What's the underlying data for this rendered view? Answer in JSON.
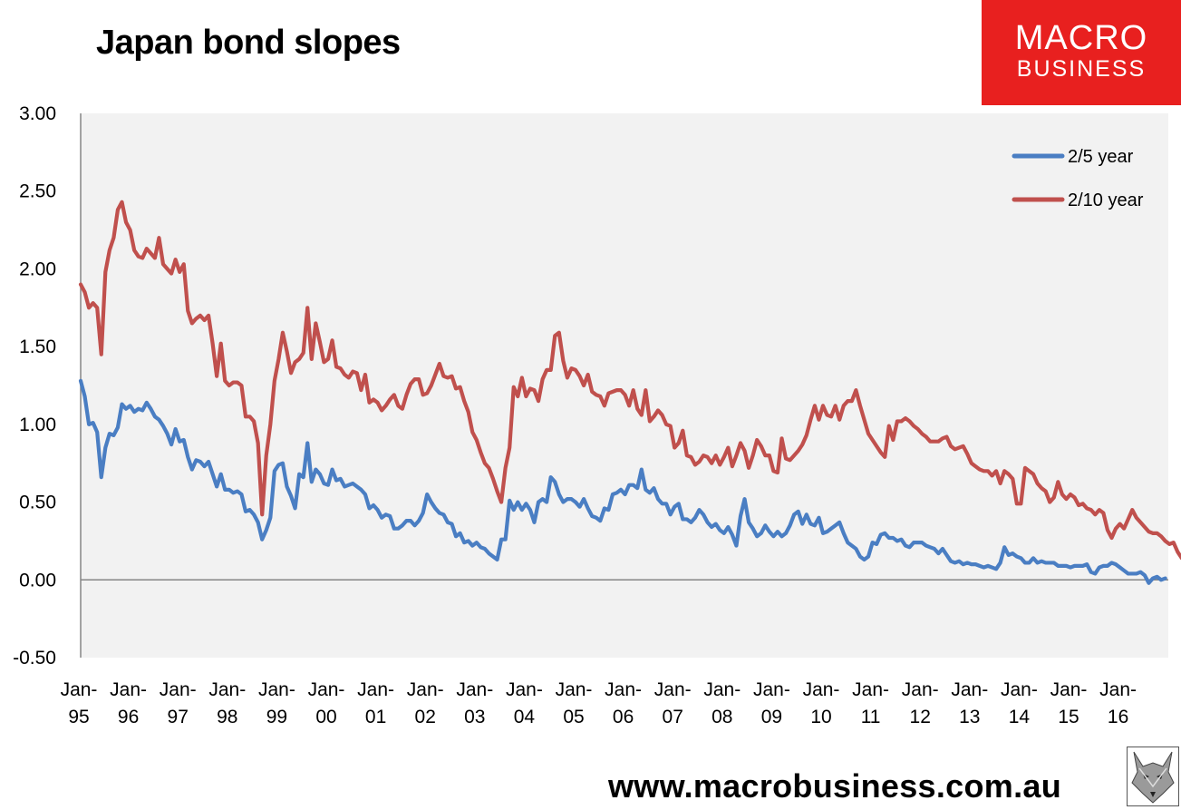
{
  "title": "Japan bond slopes",
  "logo": {
    "line1": "MACRO",
    "line2": "BUSINESS"
  },
  "footer": "www.macrobusiness.com.au",
  "colors": {
    "series_2_5": "#4a7ec3",
    "series_2_10": "#c0504d",
    "plot_bg": "#f2f2f2",
    "brand": "#e8201f"
  },
  "chart_data": {
    "type": "line",
    "title": "Japan bond slopes",
    "xlabel": "",
    "ylabel": "",
    "ylim": [
      -0.5,
      3.0
    ],
    "yticks": [
      "3.00",
      "2.50",
      "2.00",
      "1.50",
      "1.00",
      "0.50",
      "0.00",
      "-0.50"
    ],
    "xticks": [
      [
        "Jan-",
        "95"
      ],
      [
        "Jan-",
        "96"
      ],
      [
        "Jan-",
        "97"
      ],
      [
        "Jan-",
        "98"
      ],
      [
        "Jan-",
        "99"
      ],
      [
        "Jan-",
        "00"
      ],
      [
        "Jan-",
        "01"
      ],
      [
        "Jan-",
        "02"
      ],
      [
        "Jan-",
        "03"
      ],
      [
        "Jan-",
        "04"
      ],
      [
        "Jan-",
        "05"
      ],
      [
        "Jan-",
        "06"
      ],
      [
        "Jan-",
        "07"
      ],
      [
        "Jan-",
        "08"
      ],
      [
        "Jan-",
        "09"
      ],
      [
        "Jan-",
        "10"
      ],
      [
        "Jan-",
        "11"
      ],
      [
        "Jan-",
        "12"
      ],
      [
        "Jan-",
        "13"
      ],
      [
        "Jan-",
        "14"
      ],
      [
        "Jan-",
        "15"
      ],
      [
        "Jan-",
        "16"
      ]
    ],
    "x_start": "Jan-95",
    "x_frequency": "monthly",
    "grid": false,
    "legend": "top-right",
    "series": [
      {
        "name": "2/5 year",
        "values": [
          1.28,
          1.18,
          1.0,
          1.01,
          0.95,
          0.66,
          0.85,
          0.94,
          0.93,
          0.98,
          1.13,
          1.1,
          1.12,
          1.08,
          1.1,
          1.09,
          1.14,
          1.1,
          1.05,
          1.03,
          0.99,
          0.94,
          0.87,
          0.97,
          0.89,
          0.9,
          0.79,
          0.71,
          0.77,
          0.76,
          0.73,
          0.76,
          0.68,
          0.6,
          0.68,
          0.58,
          0.58,
          0.56,
          0.57,
          0.55,
          0.44,
          0.45,
          0.42,
          0.37,
          0.26,
          0.32,
          0.4,
          0.7,
          0.74,
          0.75,
          0.6,
          0.54,
          0.46,
          0.68,
          0.66,
          0.88,
          0.63,
          0.71,
          0.68,
          0.62,
          0.61,
          0.71,
          0.64,
          0.65,
          0.6,
          0.61,
          0.62,
          0.6,
          0.58,
          0.55,
          0.46,
          0.48,
          0.45,
          0.4,
          0.42,
          0.41,
          0.33,
          0.33,
          0.35,
          0.38,
          0.38,
          0.35,
          0.38,
          0.43,
          0.55,
          0.5,
          0.46,
          0.43,
          0.42,
          0.37,
          0.36,
          0.28,
          0.3,
          0.24,
          0.25,
          0.22,
          0.24,
          0.21,
          0.2,
          0.17,
          0.15,
          0.13,
          0.26,
          0.26,
          0.51,
          0.45,
          0.5,
          0.45,
          0.49,
          0.45,
          0.37,
          0.5,
          0.52,
          0.5,
          0.66,
          0.63,
          0.55,
          0.5,
          0.52,
          0.52,
          0.5,
          0.47,
          0.52,
          0.46,
          0.41,
          0.4,
          0.38,
          0.46,
          0.45,
          0.55,
          0.56,
          0.58,
          0.55,
          0.61,
          0.61,
          0.59,
          0.71,
          0.58,
          0.56,
          0.59,
          0.52,
          0.49,
          0.49,
          0.42,
          0.47,
          0.49,
          0.39,
          0.39,
          0.37,
          0.4,
          0.45,
          0.42,
          0.37,
          0.34,
          0.36,
          0.32,
          0.3,
          0.34,
          0.29,
          0.22,
          0.41,
          0.52,
          0.37,
          0.33,
          0.28,
          0.3,
          0.35,
          0.31,
          0.28,
          0.31,
          0.28,
          0.3,
          0.35,
          0.42,
          0.44,
          0.36,
          0.42,
          0.36,
          0.35,
          0.4,
          0.3,
          0.31,
          0.33,
          0.35,
          0.37,
          0.3,
          0.24,
          0.22,
          0.2,
          0.15,
          0.13,
          0.15,
          0.24,
          0.23,
          0.29,
          0.3,
          0.27,
          0.27,
          0.25,
          0.26,
          0.22,
          0.21,
          0.24,
          0.24,
          0.24,
          0.22,
          0.21,
          0.2,
          0.17,
          0.2,
          0.16,
          0.12,
          0.11,
          0.12,
          0.1,
          0.11,
          0.1,
          0.1,
          0.09,
          0.08,
          0.09,
          0.08,
          0.07,
          0.11,
          0.21,
          0.16,
          0.17,
          0.15,
          0.14,
          0.11,
          0.11,
          0.14,
          0.11,
          0.12,
          0.11,
          0.11,
          0.11,
          0.09,
          0.09,
          0.09,
          0.08,
          0.09,
          0.09,
          0.09,
          0.1,
          0.05,
          0.04,
          0.08,
          0.09,
          0.09,
          0.11,
          0.1,
          0.08,
          0.06,
          0.04,
          0.04,
          0.04,
          0.05,
          0.03,
          -0.02,
          0.01,
          0.02,
          0.0,
          0.01
        ]
      },
      {
        "name": "2/10 year",
        "values": [
          1.9,
          1.85,
          1.75,
          1.78,
          1.75,
          1.45,
          1.98,
          2.12,
          2.2,
          2.38,
          2.43,
          2.3,
          2.25,
          2.12,
          2.08,
          2.07,
          2.13,
          2.1,
          2.07,
          2.2,
          2.03,
          2.0,
          1.97,
          2.06,
          1.98,
          2.03,
          1.73,
          1.65,
          1.68,
          1.7,
          1.67,
          1.7,
          1.52,
          1.31,
          1.52,
          1.28,
          1.25,
          1.27,
          1.27,
          1.25,
          1.05,
          1.05,
          1.02,
          0.88,
          0.42,
          0.8,
          1.0,
          1.28,
          1.42,
          1.59,
          1.47,
          1.33,
          1.4,
          1.42,
          1.46,
          1.75,
          1.42,
          1.65,
          1.53,
          1.4,
          1.42,
          1.54,
          1.37,
          1.36,
          1.32,
          1.3,
          1.34,
          1.33,
          1.22,
          1.32,
          1.14,
          1.16,
          1.14,
          1.09,
          1.12,
          1.16,
          1.19,
          1.12,
          1.1,
          1.19,
          1.26,
          1.29,
          1.29,
          1.19,
          1.2,
          1.25,
          1.32,
          1.39,
          1.31,
          1.3,
          1.31,
          1.23,
          1.24,
          1.15,
          1.08,
          0.95,
          0.9,
          0.82,
          0.75,
          0.72,
          0.65,
          0.57,
          0.5,
          0.72,
          0.85,
          1.24,
          1.18,
          1.3,
          1.18,
          1.23,
          1.22,
          1.15,
          1.29,
          1.35,
          1.35,
          1.57,
          1.59,
          1.41,
          1.3,
          1.36,
          1.35,
          1.31,
          1.25,
          1.32,
          1.21,
          1.19,
          1.18,
          1.12,
          1.2,
          1.21,
          1.22,
          1.22,
          1.19,
          1.12,
          1.22,
          1.1,
          1.06,
          1.22,
          1.02,
          1.05,
          1.09,
          1.06,
          1.0,
          0.99,
          0.85,
          0.88,
          0.96,
          0.8,
          0.79,
          0.74,
          0.76,
          0.8,
          0.79,
          0.75,
          0.8,
          0.74,
          0.79,
          0.85,
          0.73,
          0.8,
          0.88,
          0.83,
          0.72,
          0.8,
          0.9,
          0.86,
          0.8,
          0.8,
          0.7,
          0.69,
          0.91,
          0.78,
          0.77,
          0.8,
          0.83,
          0.87,
          0.93,
          1.03,
          1.12,
          1.03,
          1.12,
          1.06,
          1.05,
          1.12,
          1.03,
          1.12,
          1.15,
          1.15,
          1.22,
          1.12,
          1.03,
          0.94,
          0.9,
          0.86,
          0.82,
          0.79,
          0.99,
          0.9,
          1.02,
          1.02,
          1.04,
          1.02,
          0.99,
          0.97,
          0.94,
          0.92,
          0.89,
          0.89,
          0.89,
          0.91,
          0.92,
          0.86,
          0.84,
          0.85,
          0.86,
          0.81,
          0.75,
          0.73,
          0.71,
          0.7,
          0.7,
          0.67,
          0.7,
          0.62,
          0.7,
          0.68,
          0.65,
          0.49,
          0.49,
          0.72,
          0.7,
          0.68,
          0.62,
          0.59,
          0.57,
          0.5,
          0.53,
          0.63,
          0.55,
          0.52,
          0.55,
          0.53,
          0.48,
          0.49,
          0.46,
          0.45,
          0.42,
          0.45,
          0.43,
          0.32,
          0.27,
          0.33,
          0.36,
          0.33,
          0.39,
          0.45,
          0.4,
          0.37,
          0.34,
          0.31,
          0.3,
          0.3,
          0.28,
          0.25,
          0.23,
          0.24,
          0.18,
          0.14,
          0.14,
          0.12,
          0.16
        ]
      }
    ]
  }
}
